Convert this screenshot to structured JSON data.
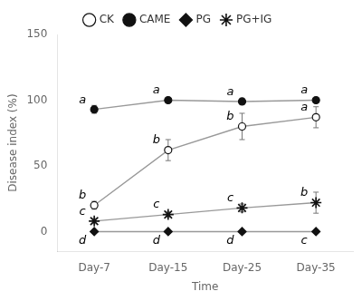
{
  "chart_data": {
    "type": "line",
    "categories": [
      "Day-7",
      "Day-15",
      "Day-25",
      "Day-35"
    ],
    "series": [
      {
        "name": "CK",
        "color": "#111111",
        "marker": "circle_open",
        "values": [
          20,
          62,
          80,
          87
        ],
        "errors": [
          3,
          8,
          10,
          8
        ],
        "annotations": [
          "b",
          "b",
          "b",
          "a"
        ]
      },
      {
        "name": "CAME",
        "color": "#111111",
        "marker": "circle",
        "values": [
          93,
          100,
          99,
          100
        ],
        "errors": [
          3,
          1,
          2,
          0
        ],
        "annotations": [
          "a",
          "a",
          "a",
          "a"
        ]
      },
      {
        "name": "PG",
        "color": "#111111",
        "marker": "diamond",
        "values": [
          0,
          0,
          0,
          0
        ],
        "errors": [
          0,
          0,
          0,
          0
        ],
        "annotations": [
          "d",
          "d",
          "d",
          "c"
        ]
      },
      {
        "name": "PG+IG",
        "color": "#111111",
        "marker": "star",
        "values": [
          8,
          13,
          18,
          22
        ],
        "errors": [
          2,
          2,
          3,
          8
        ],
        "annotations": [
          "c",
          "c",
          "c",
          "b"
        ]
      }
    ],
    "xlabel": "Time",
    "ylabel": "Disease index (%)",
    "ylim": [
      -15,
      150
    ],
    "yticks": [
      0,
      50,
      100,
      150
    ],
    "grid": false,
    "legend": "top"
  }
}
